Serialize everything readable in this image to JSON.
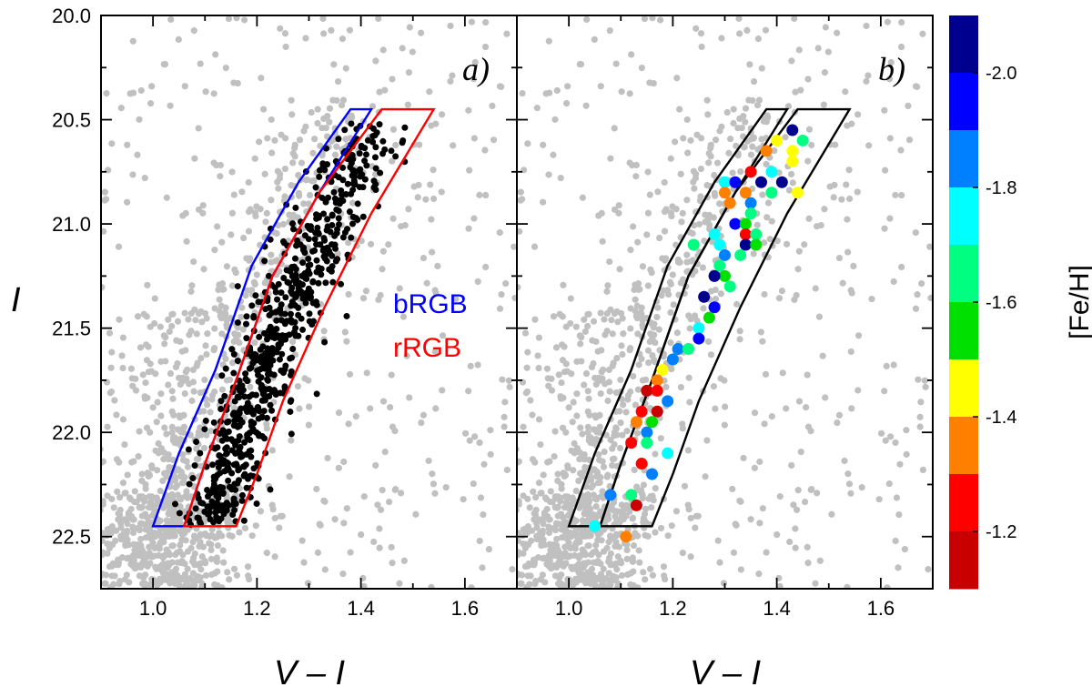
{
  "chart_data": [
    {
      "panel": "a)",
      "type": "scatter",
      "xlabel": "V – I",
      "ylabel": "I",
      "xlim": [
        0.9,
        1.7
      ],
      "ylim": [
        22.75,
        20.0
      ],
      "y_inverted": true,
      "x_ticks": [
        "1.0",
        "1.2",
        "1.4",
        "1.6"
      ],
      "y_ticks": [
        "20.0",
        "20.5",
        "21.0",
        "21.5",
        "22.0",
        "22.5"
      ],
      "legend_placement": "center-right",
      "series": [
        {
          "name": "bRGB",
          "color": "#0000ff",
          "kind": "selection-box",
          "polygon": [
            [
              1.0,
              22.45
            ],
            [
              1.05,
              22.1
            ],
            [
              1.12,
              21.7
            ],
            [
              1.19,
              21.2
            ],
            [
              1.28,
              20.8
            ],
            [
              1.38,
              20.45
            ],
            [
              1.42,
              20.45
            ],
            [
              1.32,
              20.85
            ],
            [
              1.23,
              21.25
            ],
            [
              1.16,
              21.75
            ],
            [
              1.1,
              22.15
            ],
            [
              1.06,
              22.45
            ]
          ]
        },
        {
          "name": "rRGB",
          "color": "#ff0000",
          "kind": "selection-box",
          "polygon": [
            [
              1.06,
              22.45
            ],
            [
              1.1,
              22.15
            ],
            [
              1.16,
              21.75
            ],
            [
              1.23,
              21.25
            ],
            [
              1.32,
              20.85
            ],
            [
              1.44,
              20.45
            ],
            [
              1.54,
              20.45
            ],
            [
              1.42,
              20.95
            ],
            [
              1.33,
              21.4
            ],
            [
              1.25,
              21.85
            ],
            [
              1.2,
              22.2
            ],
            [
              1.16,
              22.45
            ]
          ]
        }
      ],
      "field_stars": {
        "color": "#c0c0c0",
        "description": "grey field/background stars"
      },
      "selected_stars": {
        "color": "#000000",
        "description": "black RGB stars within boxes"
      }
    },
    {
      "panel": "b)",
      "type": "scatter",
      "xlabel": "V – I",
      "xlim": [
        0.9,
        1.7
      ],
      "ylim": [
        22.75,
        20.0
      ],
      "x_ticks": [
        "1.0",
        "1.2",
        "1.4",
        "1.6"
      ],
      "colorbar": {
        "label": "[Fe/H]",
        "range": [
          -2.1,
          -1.1
        ],
        "tick_labels": [
          "-2.0",
          "-1.8",
          "-1.6",
          "-1.4",
          "-1.2"
        ],
        "tick_values": [
          -2.0,
          -1.8,
          -1.6,
          -1.4,
          -1.2
        ],
        "bins": [
          {
            "from": -2.1,
            "to": -2.0,
            "color": "#00008f"
          },
          {
            "from": -2.0,
            "to": -1.9,
            "color": "#0000ff"
          },
          {
            "from": -1.9,
            "to": -1.8,
            "color": "#0080ff"
          },
          {
            "from": -1.8,
            "to": -1.7,
            "color": "#00ffff"
          },
          {
            "from": -1.7,
            "to": -1.6,
            "color": "#00ff80"
          },
          {
            "from": -1.6,
            "to": -1.5,
            "color": "#00e000"
          },
          {
            "from": -1.5,
            "to": -1.4,
            "color": "#ffff00"
          },
          {
            "from": -1.4,
            "to": -1.3,
            "color": "#ff8000"
          },
          {
            "from": -1.3,
            "to": -1.2,
            "color": "#ff0000"
          },
          {
            "from": -1.2,
            "to": -1.1,
            "color": "#c80000"
          }
        ]
      },
      "box_color": "#000000",
      "spectroscopic_stars": [
        {
          "x": 1.43,
          "y": 20.55,
          "feh": -2.05
        },
        {
          "x": 1.4,
          "y": 20.6,
          "feh": -1.45
        },
        {
          "x": 1.45,
          "y": 20.6,
          "feh": -1.65
        },
        {
          "x": 1.43,
          "y": 20.65,
          "feh": -1.45
        },
        {
          "x": 1.38,
          "y": 20.65,
          "feh": -1.35
        },
        {
          "x": 1.43,
          "y": 20.7,
          "feh": -1.45
        },
        {
          "x": 1.35,
          "y": 20.75,
          "feh": -1.25
        },
        {
          "x": 1.39,
          "y": 20.75,
          "feh": -1.75
        },
        {
          "x": 1.3,
          "y": 20.8,
          "feh": -1.75
        },
        {
          "x": 1.32,
          "y": 20.8,
          "feh": -1.95
        },
        {
          "x": 1.37,
          "y": 20.8,
          "feh": -2.05
        },
        {
          "x": 1.41,
          "y": 20.8,
          "feh": -2.05
        },
        {
          "x": 1.3,
          "y": 20.85,
          "feh": -1.35
        },
        {
          "x": 1.34,
          "y": 20.85,
          "feh": -1.35
        },
        {
          "x": 1.39,
          "y": 20.85,
          "feh": -1.65
        },
        {
          "x": 1.44,
          "y": 20.85,
          "feh": -1.45
        },
        {
          "x": 1.31,
          "y": 20.9,
          "feh": -1.35
        },
        {
          "x": 1.35,
          "y": 20.9,
          "feh": -1.85
        },
        {
          "x": 1.35,
          "y": 20.95,
          "feh": -1.65
        },
        {
          "x": 1.32,
          "y": 21.0,
          "feh": -1.95
        },
        {
          "x": 1.34,
          "y": 21.0,
          "feh": -1.55
        },
        {
          "x": 1.28,
          "y": 21.05,
          "feh": -1.75
        },
        {
          "x": 1.34,
          "y": 21.05,
          "feh": -1.25
        },
        {
          "x": 1.36,
          "y": 21.05,
          "feh": -1.65
        },
        {
          "x": 1.24,
          "y": 21.1,
          "feh": -1.65
        },
        {
          "x": 1.29,
          "y": 21.1,
          "feh": -1.75
        },
        {
          "x": 1.34,
          "y": 21.1,
          "feh": -2.05
        },
        {
          "x": 1.36,
          "y": 21.1,
          "feh": -1.55
        },
        {
          "x": 1.3,
          "y": 21.15,
          "feh": -1.85
        },
        {
          "x": 1.33,
          "y": 21.15,
          "feh": -1.65
        },
        {
          "x": 1.29,
          "y": 21.2,
          "feh": -1.65
        },
        {
          "x": 1.3,
          "y": 21.25,
          "feh": -1.55
        },
        {
          "x": 1.28,
          "y": 21.25,
          "feh": -2.05
        },
        {
          "x": 1.31,
          "y": 21.3,
          "feh": -1.65
        },
        {
          "x": 1.26,
          "y": 21.35,
          "feh": -2.05
        },
        {
          "x": 1.28,
          "y": 21.4,
          "feh": -1.95
        },
        {
          "x": 1.27,
          "y": 21.45,
          "feh": -1.55
        },
        {
          "x": 1.25,
          "y": 21.5,
          "feh": -1.75
        },
        {
          "x": 1.25,
          "y": 21.55,
          "feh": -1.95
        },
        {
          "x": 1.21,
          "y": 21.6,
          "feh": -1.85
        },
        {
          "x": 1.23,
          "y": 21.6,
          "feh": -1.65
        },
        {
          "x": 1.2,
          "y": 21.65,
          "feh": -1.85
        },
        {
          "x": 1.18,
          "y": 21.7,
          "feh": -1.45
        },
        {
          "x": 1.17,
          "y": 21.75,
          "feh": -1.35
        },
        {
          "x": 1.15,
          "y": 21.8,
          "feh": -1.15
        },
        {
          "x": 1.17,
          "y": 21.8,
          "feh": -1.25
        },
        {
          "x": 1.19,
          "y": 21.85,
          "feh": -1.85
        },
        {
          "x": 1.14,
          "y": 21.9,
          "feh": -1.25
        },
        {
          "x": 1.17,
          "y": 21.9,
          "feh": -1.15
        },
        {
          "x": 1.13,
          "y": 21.95,
          "feh": -1.35
        },
        {
          "x": 1.16,
          "y": 21.95,
          "feh": -1.55
        },
        {
          "x": 1.15,
          "y": 22.0,
          "feh": -1.85
        },
        {
          "x": 1.12,
          "y": 22.05,
          "feh": -1.25
        },
        {
          "x": 1.15,
          "y": 22.05,
          "feh": -1.65
        },
        {
          "x": 1.19,
          "y": 22.1,
          "feh": -1.75
        },
        {
          "x": 1.14,
          "y": 22.15,
          "feh": -1.25
        },
        {
          "x": 1.16,
          "y": 22.2,
          "feh": -1.85
        },
        {
          "x": 1.08,
          "y": 22.3,
          "feh": -1.85
        },
        {
          "x": 1.12,
          "y": 22.3,
          "feh": -1.65
        },
        {
          "x": 1.13,
          "y": 22.35,
          "feh": -1.15
        },
        {
          "x": 1.05,
          "y": 22.45,
          "feh": -1.75
        },
        {
          "x": 1.11,
          "y": 22.5,
          "feh": -1.35
        }
      ]
    }
  ]
}
